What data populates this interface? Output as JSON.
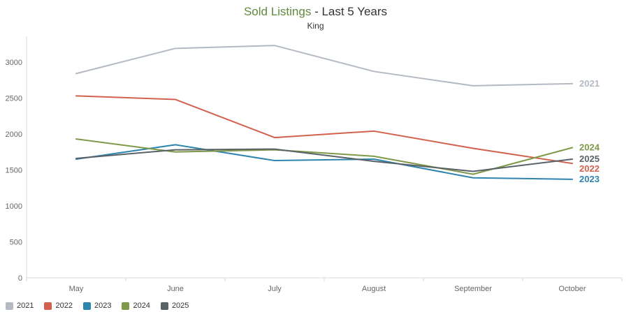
{
  "header": {
    "title_accent": "Sold Listings",
    "title_rest": " - Last 5 Years",
    "subtitle": "King"
  },
  "colors": {
    "title_accent": "#5f8a3c",
    "axis_line": "#d8d8d8",
    "tick_text": "#666666",
    "legend_text": "#333333"
  },
  "chart_data": {
    "type": "line",
    "title": "Sold Listings - Last 5 Years",
    "subtitle": "King",
    "x": [
      "May",
      "June",
      "July",
      "August",
      "September",
      "October"
    ],
    "xlabel": "",
    "ylabel": "",
    "ylim": [
      0,
      3300
    ],
    "yticks": [
      0,
      500,
      1000,
      1500,
      2000,
      2500,
      3000
    ],
    "grid": false,
    "legend_position": "bottom-left",
    "series": [
      {
        "name": "2021",
        "color": "#b4bac3",
        "values": [
          2840,
          3190,
          3230,
          2870,
          2670,
          2700
        ]
      },
      {
        "name": "2022",
        "color": "#d2604c",
        "values": [
          2530,
          2480,
          1950,
          2040,
          1800,
          1590
        ]
      },
      {
        "name": "2023",
        "color": "#2d84ad",
        "values": [
          1650,
          1850,
          1630,
          1650,
          1390,
          1370
        ]
      },
      {
        "name": "2024",
        "color": "#7e9948",
        "values": [
          1930,
          1750,
          1780,
          1690,
          1440,
          1810
        ]
      },
      {
        "name": "2025",
        "color": "#596266",
        "values": [
          1660,
          1780,
          1790,
          1620,
          1480,
          1650
        ]
      }
    ]
  }
}
